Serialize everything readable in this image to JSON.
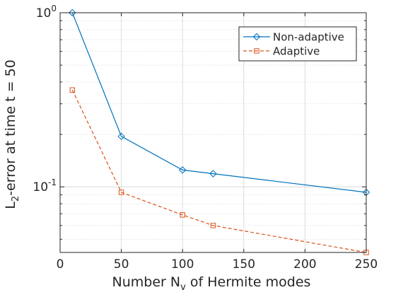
{
  "chart_data": {
    "type": "line",
    "xlabel_parts": {
      "pre": "Number N",
      "sub": "v",
      "post": " of Hermite modes"
    },
    "ylabel_parts": {
      "pre": "L",
      "sub": "2",
      "post": "-error at time t = 50"
    },
    "x_scale": "linear",
    "y_scale": "log",
    "xlim": [
      0,
      250
    ],
    "ylim": [
      0.042,
      1
    ],
    "grid": true,
    "minor_grid_y": true,
    "legend_position": "top-right",
    "x_ticks": [
      {
        "value": 0,
        "label": "0"
      },
      {
        "value": 50,
        "label": "50"
      },
      {
        "value": 100,
        "label": "100"
      },
      {
        "value": 150,
        "label": "150"
      },
      {
        "value": 200,
        "label": "200"
      },
      {
        "value": 250,
        "label": "250"
      }
    ],
    "y_ticks": [
      {
        "value": 0.1,
        "base": "10",
        "exp": "-1"
      },
      {
        "value": 1,
        "base": "10",
        "exp": "0"
      }
    ],
    "series": [
      {
        "name": "Non-adaptive",
        "color": "#0072bd",
        "line_style": "solid",
        "marker": "diamond",
        "x": [
          10,
          50,
          100,
          125,
          250
        ],
        "y": [
          1.0,
          0.195,
          0.125,
          0.119,
          0.093
        ]
      },
      {
        "name": "Adaptive",
        "color": "#d95319",
        "line_style": "dashed",
        "marker": "square",
        "x": [
          10,
          50,
          100,
          125,
          250
        ],
        "y": [
          0.36,
          0.093,
          0.069,
          0.06,
          0.042
        ]
      }
    ]
  }
}
